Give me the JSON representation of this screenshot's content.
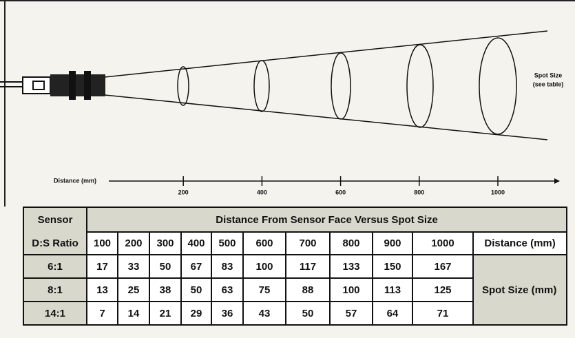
{
  "diagram": {
    "spot_label": [
      "Spot Size",
      "(see table)"
    ],
    "distance_label": "Distance (mm)",
    "distance_ticks": [
      200,
      400,
      600,
      800,
      1000
    ]
  },
  "table": {
    "corner": [
      "Sensor",
      "D:S Ratio"
    ],
    "span_header": "Distance From Sensor Face Versus Spot Size",
    "columns": [
      "100",
      "200",
      "300",
      "400",
      "500",
      "600",
      "700",
      "800",
      "900",
      "1000"
    ],
    "columns_unit": "Distance (mm)",
    "rows": [
      {
        "label": "6:1",
        "values": [
          "17",
          "33",
          "50",
          "67",
          "83",
          "100",
          "117",
          "133",
          "150",
          "167"
        ]
      },
      {
        "label": "8:1",
        "values": [
          "13",
          "25",
          "38",
          "50",
          "63",
          "75",
          "88",
          "100",
          "113",
          "125"
        ]
      },
      {
        "label": "14:1",
        "values": [
          "7",
          "14",
          "21",
          "29",
          "36",
          "43",
          "50",
          "57",
          "64",
          "71"
        ]
      }
    ],
    "rows_unit": "Spot Size (mm)"
  }
}
